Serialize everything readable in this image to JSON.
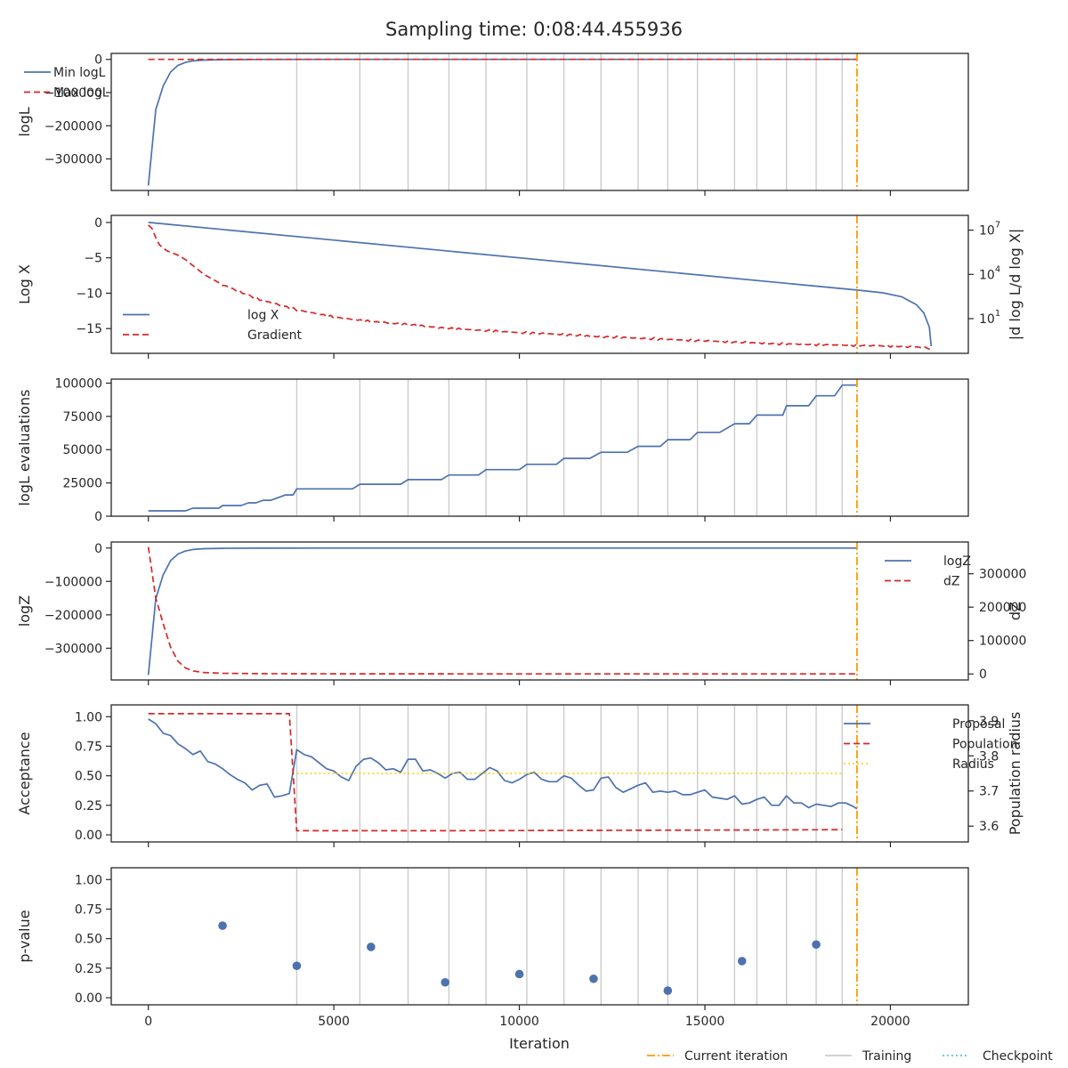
{
  "title": "Sampling time: 0:08:44.455936",
  "xlabel": "Iteration",
  "x_ticks": [
    0,
    5000,
    10000,
    15000,
    20000
  ],
  "xlim": [
    -1000,
    22100
  ],
  "current_iteration": 19100,
  "training_iterations": [
    4000,
    5700,
    7000,
    8100,
    9100,
    10200,
    11200,
    12200,
    13200,
    14000,
    14800,
    15800,
    16400,
    17200,
    18000,
    18700
  ],
  "colors": {
    "blue": "#4c72b0",
    "red": "#d62728",
    "orange": "#ff9900",
    "gray": "#cccccc",
    "yellow": "#ffd21f",
    "cyan": "#5bc4d9",
    "axis": "#262626"
  },
  "bottom_legend": [
    {
      "label": "Current iteration",
      "style": "dashdot",
      "color": "#ff9900"
    },
    {
      "label": "Training",
      "style": "solid",
      "color": "#cccccc"
    },
    {
      "label": "Checkpoint",
      "style": "dotted",
      "color": "#5bc4d9"
    }
  ],
  "chart_data": [
    {
      "type": "line",
      "ylabel": "logL",
      "ylim": [
        -395000,
        18000
      ],
      "y_ticks": [
        0,
        -100000,
        -200000,
        -300000
      ],
      "y_tick_labels": [
        "0",
        "−100000",
        "−200000",
        "−300000"
      ],
      "legend": "top-right",
      "show_training": true,
      "series": [
        {
          "name": "Min logL",
          "color": "#4c72b0",
          "dash": "solid",
          "x": [
            0,
            200,
            400,
            600,
            800,
            1000,
            1200,
            1500,
            2000,
            3000,
            5000,
            10000,
            15000,
            19100
          ],
          "y": [
            -380000,
            -152000,
            -80000,
            -38000,
            -18000,
            -9000,
            -4500,
            -2000,
            -800,
            -300,
            -100,
            -20,
            -5,
            0
          ]
        },
        {
          "name": "Max logL",
          "color": "#d62728",
          "dash": "dashed",
          "x": [
            0,
            19100
          ],
          "y": [
            0,
            0
          ]
        }
      ]
    },
    {
      "type": "line",
      "ylabel": "Log X",
      "y2label": "|d log L/d log X|",
      "ylim": [
        -18.5,
        1.0
      ],
      "y_ticks": [
        0,
        -5,
        -10,
        -15
      ],
      "y_tick_labels": [
        "0",
        "−5",
        "−10",
        "−15"
      ],
      "y2_ticks": [
        7,
        4,
        1
      ],
      "y2_tick_labels": [
        "10",
        "10",
        "10"
      ],
      "y2_tick_exps": [
        "7",
        "4",
        "1"
      ],
      "y2_range_log10": [
        -1.35,
        8.0
      ],
      "legend": "bottom-left",
      "show_training": false,
      "series": [
        {
          "name": "log X",
          "color": "#4c72b0",
          "dash": "solid",
          "axis": "left",
          "x": [
            0,
            19100,
            19800,
            20300,
            20700,
            20900,
            21050,
            21100
          ],
          "y": [
            0,
            -9.55,
            -9.95,
            -10.5,
            -11.6,
            -12.8,
            -14.8,
            -17.5
          ]
        },
        {
          "name": "Gradient",
          "color": "#d62728",
          "dash": "dashed",
          "axis": "right",
          "jitter": true,
          "x": [
            0,
            100,
            200,
            300,
            500,
            800,
            1000,
            1500,
            2000,
            3000,
            4000,
            5000,
            6000,
            7000,
            8000,
            9000,
            10000,
            11000,
            12000,
            13000,
            14000,
            15000,
            16000,
            17000,
            18000,
            19000,
            20000,
            21000,
            21100
          ],
          "y": [
            7.35,
            7.1,
            6.5,
            6.0,
            5.6,
            5.3,
            5.0,
            4.0,
            3.3,
            2.3,
            1.6,
            1.1,
            0.8,
            0.6,
            0.35,
            0.2,
            0.05,
            -0.05,
            -0.2,
            -0.3,
            -0.4,
            -0.5,
            -0.6,
            -0.7,
            -0.75,
            -0.8,
            -0.85,
            -0.95,
            -1.1
          ]
        }
      ]
    },
    {
      "type": "line",
      "ylabel": "logL evaluations",
      "ylim": [
        0,
        103000
      ],
      "y_ticks": [
        0,
        25000,
        50000,
        75000,
        100000
      ],
      "y_tick_labels": [
        "0",
        "25000",
        "50000",
        "75000",
        "100000"
      ],
      "legend": "none",
      "show_training": true,
      "series": [
        {
          "name": "",
          "color": "#4c72b0",
          "dash": "solid",
          "x": [
            0,
            1000,
            1200,
            1900,
            2000,
            2500,
            2700,
            2900,
            3100,
            3300,
            3500,
            3700,
            3900,
            4000,
            5500,
            5700,
            6800,
            7000,
            7900,
            8100,
            8900,
            9100,
            10000,
            10200,
            11000,
            11200,
            11900,
            12200,
            12900,
            13200,
            13800,
            14000,
            14600,
            14800,
            15400,
            15800,
            16200,
            16400,
            17100,
            17200,
            17800,
            18000,
            18500,
            18700,
            19100
          ],
          "y": [
            4000,
            4000,
            6000,
            6000,
            8000,
            8000,
            10000,
            10000,
            12000,
            12000,
            14000,
            16000,
            16000,
            20500,
            20500,
            24000,
            24000,
            27500,
            27500,
            31000,
            31000,
            35000,
            35000,
            39000,
            39000,
            43500,
            43500,
            48000,
            48000,
            52500,
            52500,
            57500,
            57500,
            63000,
            63000,
            69500,
            69500,
            76000,
            76000,
            83000,
            83000,
            90500,
            90500,
            98500,
            98500
          ]
        }
      ]
    },
    {
      "type": "line",
      "ylabel": "logZ",
      "y2label": "dZ",
      "ylim": [
        -395000,
        18000
      ],
      "y_ticks": [
        0,
        -100000,
        -200000,
        -300000
      ],
      "y_tick_labels": [
        "0",
        "−100000",
        "−200000",
        "−300000"
      ],
      "y2_ticks": [
        0,
        100000,
        200000,
        300000
      ],
      "y2_tick_labels": [
        "0",
        "100000",
        "200000",
        "300000"
      ],
      "y2lim": [
        -18000,
        395000
      ],
      "legend": "top-right",
      "show_training": false,
      "series": [
        {
          "name": "logZ",
          "color": "#4c72b0",
          "dash": "solid",
          "axis": "left",
          "x": [
            0,
            200,
            400,
            600,
            800,
            1000,
            1200,
            1500,
            2000,
            3000,
            5000,
            10000,
            19100
          ],
          "y": [
            -380000,
            -152000,
            -80000,
            -38000,
            -18000,
            -9000,
            -4500,
            -2000,
            -800,
            -300,
            -100,
            -20,
            0
          ]
        },
        {
          "name": "dZ",
          "color": "#d62728",
          "dash": "dashed",
          "axis": "right",
          "x": [
            0,
            200,
            400,
            600,
            800,
            1000,
            1200,
            1500,
            2000,
            3000,
            5000,
            10000,
            18700,
            19100
          ],
          "y": [
            380000,
            228000,
            150000,
            80000,
            38000,
            18000,
            9000,
            4500,
            2000,
            800,
            300,
            100,
            0,
            0
          ]
        }
      ]
    },
    {
      "type": "line",
      "ylabel": "Acceptance",
      "y2label": "Population radius",
      "ylim": [
        -0.06,
        1.1
      ],
      "y_ticks": [
        0,
        0.25,
        0.5,
        0.75,
        1.0
      ],
      "y_tick_labels": [
        "0.00",
        "0.25",
        "0.50",
        "0.75",
        "1.00"
      ],
      "y2_ticks": [
        3.6,
        3.7,
        3.8,
        3.9
      ],
      "y2_tick_labels": [
        "3.6",
        "3.7",
        "3.8",
        "3.9"
      ],
      "y2lim": [
        3.555,
        3.945
      ],
      "legend": "top-right",
      "show_training": true,
      "series": [
        {
          "name": "Proposal",
          "color": "#4c72b0",
          "dash": "solid",
          "axis": "left",
          "x": [
            0,
            200,
            400,
            600,
            800,
            1000,
            1200,
            1400,
            1600,
            1800,
            2000,
            2200,
            2400,
            2600,
            2800,
            3000,
            3200,
            3400,
            3600,
            3800,
            4000,
            4200,
            4400,
            4600,
            4800,
            5000,
            5200,
            5400,
            5600,
            5800,
            6000,
            6200,
            6400,
            6600,
            6800,
            7000,
            7200,
            7400,
            7600,
            7800,
            8000,
            8200,
            8400,
            8600,
            8800,
            9000,
            9200,
            9400,
            9600,
            9800,
            10000,
            10200,
            10400,
            10600,
            10800,
            11000,
            11200,
            11400,
            11600,
            11800,
            12000,
            12200,
            12400,
            12600,
            12800,
            13000,
            13200,
            13400,
            13600,
            13800,
            14000,
            14200,
            14400,
            14600,
            14800,
            15000,
            15200,
            15400,
            15600,
            15800,
            16000,
            16200,
            16400,
            16600,
            16800,
            17000,
            17200,
            17400,
            17600,
            17800,
            18000,
            18200,
            18400,
            18600,
            18800,
            19000,
            19100
          ],
          "y": [
            0.98,
            0.94,
            0.86,
            0.84,
            0.77,
            0.73,
            0.68,
            0.71,
            0.62,
            0.6,
            0.56,
            0.51,
            0.47,
            0.44,
            0.38,
            0.42,
            0.43,
            0.32,
            0.33,
            0.35,
            0.72,
            0.68,
            0.66,
            0.61,
            0.56,
            0.54,
            0.49,
            0.46,
            0.58,
            0.64,
            0.65,
            0.61,
            0.55,
            0.56,
            0.53,
            0.64,
            0.64,
            0.54,
            0.55,
            0.52,
            0.48,
            0.52,
            0.53,
            0.47,
            0.47,
            0.52,
            0.57,
            0.54,
            0.46,
            0.44,
            0.47,
            0.51,
            0.53,
            0.47,
            0.45,
            0.45,
            0.5,
            0.48,
            0.42,
            0.37,
            0.38,
            0.48,
            0.49,
            0.4,
            0.36,
            0.39,
            0.42,
            0.44,
            0.36,
            0.37,
            0.36,
            0.37,
            0.34,
            0.34,
            0.36,
            0.38,
            0.32,
            0.31,
            0.3,
            0.33,
            0.26,
            0.27,
            0.3,
            0.32,
            0.25,
            0.25,
            0.33,
            0.27,
            0.27,
            0.23,
            0.26,
            0.25,
            0.24,
            0.27,
            0.27,
            0.24,
            0.22
          ]
        },
        {
          "name": "Population",
          "color": "#d62728",
          "dash": "dashed",
          "axis": "right",
          "x": [
            0,
            3800,
            4000,
            8000,
            12000,
            16000,
            18700
          ],
          "y": [
            3.92,
            3.92,
            3.587,
            3.587,
            3.588,
            3.589,
            3.59
          ]
        },
        {
          "name": "Radius",
          "color": "#ffd21f",
          "dash": "dotted",
          "axis": "right",
          "x": [
            4000,
            18700
          ],
          "y": [
            3.75,
            3.75
          ]
        }
      ]
    },
    {
      "type": "scatter",
      "ylabel": "p-value",
      "ylim": [
        -0.06,
        1.1
      ],
      "y_ticks": [
        0,
        0.25,
        0.5,
        0.75,
        1.0
      ],
      "y_tick_labels": [
        "0.00",
        "0.25",
        "0.50",
        "0.75",
        "1.00"
      ],
      "legend": "none",
      "show_training": true,
      "series": [
        {
          "name": "",
          "color": "#4c72b0",
          "x": [
            2000,
            4000,
            6000,
            8000,
            10000,
            12000,
            14000,
            16000,
            18000
          ],
          "y": [
            0.61,
            0.27,
            0.43,
            0.13,
            0.2,
            0.16,
            0.06,
            0.31,
            0.45
          ]
        }
      ]
    }
  ]
}
